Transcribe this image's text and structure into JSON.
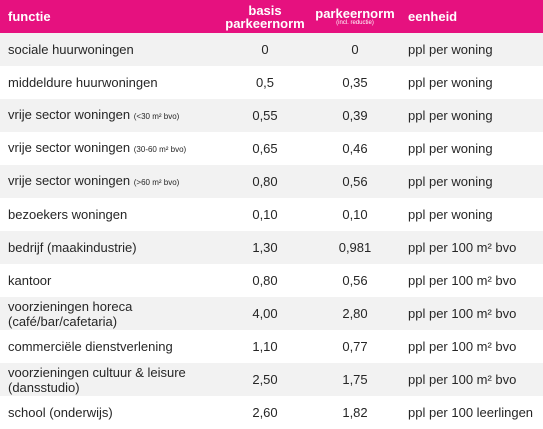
{
  "table": {
    "header": {
      "functie": [
        "functie"
      ],
      "basis": [
        "basis",
        "parkeernorm"
      ],
      "norm": "parkeernorm",
      "norm_note": "(incl. reductie)",
      "eenheid": "eenheid"
    },
    "rows": [
      {
        "functie": [
          "sociale huurwoningen"
        ],
        "basis": "0",
        "norm": "0",
        "eenheid": "ppl per woning"
      },
      {
        "functie": [
          "middeldure huurwoningen"
        ],
        "basis": "0,5",
        "norm": "0,35",
        "eenheid": "ppl per woning"
      },
      {
        "functie": [
          "vrije sector woningen"
        ],
        "note": "(<30 m² bvo)",
        "basis": "0,55",
        "norm": "0,39",
        "eenheid": "ppl per woning"
      },
      {
        "functie": [
          "vrije sector woningen"
        ],
        "note": "(30-60 m² bvo)",
        "basis": "0,65",
        "norm": "0,46",
        "eenheid": "ppl per woning"
      },
      {
        "functie": [
          "vrije sector woningen"
        ],
        "note": "(>60 m² bvo)",
        "basis": "0,80",
        "norm": "0,56",
        "eenheid": "ppl per woning"
      },
      {
        "functie": [
          "bezoekers woningen"
        ],
        "basis": "0,10",
        "norm": "0,10",
        "eenheid": "ppl per woning"
      },
      {
        "functie": [
          "bedrijf (maakindustrie)"
        ],
        "basis": "1,30",
        "norm": "0,981",
        "eenheid": "ppl per 100 m² bvo"
      },
      {
        "functie": [
          "kantoor"
        ],
        "basis": "0,80",
        "norm": "0,56",
        "eenheid": "ppl per 100 m² bvo"
      },
      {
        "functie": [
          "voorzieningen horeca",
          "(café/bar/cafetaria)"
        ],
        "basis": "4,00",
        "norm": "2,80",
        "eenheid": "ppl per 100 m² bvo"
      },
      {
        "functie": [
          "commerciële dienstverlening"
        ],
        "basis": "1,10",
        "norm": "0,77",
        "eenheid": "ppl per 100 m² bvo"
      },
      {
        "functie": [
          "voorzieningen cultuur & leisure",
          "(dansstudio)"
        ],
        "basis": "2,50",
        "norm": "1,75",
        "eenheid": "ppl per 100 m² bvo"
      },
      {
        "functie": [
          "school (onderwijs)"
        ],
        "basis": "2,60",
        "norm": "1,82",
        "eenheid": "ppl per 100 leerlingen"
      }
    ]
  }
}
